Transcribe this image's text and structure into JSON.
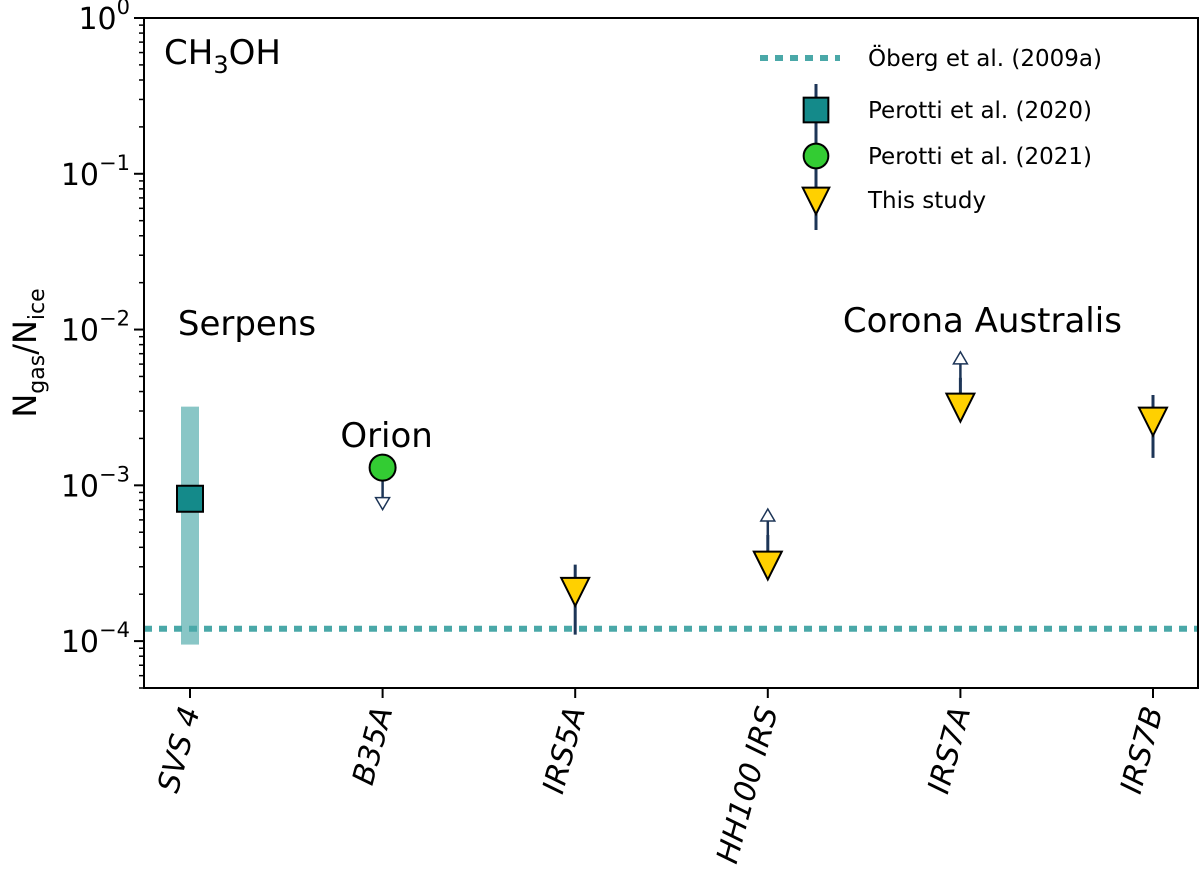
{
  "chart_data": {
    "type": "scatter",
    "panel_label": {
      "main": "CH",
      "sub": "3",
      "rest": "OH"
    },
    "ylabel": {
      "main1": "N",
      "sub1": "gas",
      "slash": "/N",
      "sub2": "ice"
    },
    "yscale": "log",
    "ylim": [
      5e-05,
      1
    ],
    "yticks": [
      {
        "value": 0.0001,
        "base": "10",
        "exp": "−4"
      },
      {
        "value": 0.001,
        "base": "10",
        "exp": "−3"
      },
      {
        "value": 0.01,
        "base": "10",
        "exp": "−2"
      },
      {
        "value": 0.1,
        "base": "10",
        "exp": "−1"
      },
      {
        "value": 1,
        "base": "10",
        "exp": "0"
      }
    ],
    "categories": [
      "SVS 4",
      "B35A",
      "IRS5A",
      "HH100 IRS",
      "IRS7A",
      "IRS7B"
    ],
    "regions": [
      {
        "label": "Serpens",
        "category": "SVS 4",
        "y": 0.011
      },
      {
        "label": "Orion",
        "category": "B35A",
        "y": 0.0021
      },
      {
        "label": "Corona Australis",
        "category": "IRS7A",
        "y": 0.0115
      }
    ],
    "reference_line": {
      "name": "Öberg et al. (2009a)",
      "value": 0.00012,
      "color": "#4aa8a8"
    },
    "series": [
      {
        "name": "Perotti et al. (2020)",
        "marker": "square",
        "color": "#148a8a",
        "points": [
          {
            "category": "SVS 4",
            "y": 0.00082,
            "band": [
              9.5e-05,
              0.0032
            ]
          }
        ]
      },
      {
        "name": "Perotti et al. (2021)",
        "marker": "circle",
        "color": "#33cc33",
        "points": [
          {
            "category": "B35A",
            "y": 0.0013,
            "upper_limit": true
          }
        ]
      },
      {
        "name": "This study",
        "marker": "triangle-down",
        "color": "#ffd000",
        "points": [
          {
            "category": "IRS5A",
            "y": 0.00021,
            "err": [
              0.00011,
              0.00031
            ]
          },
          {
            "category": "HH100 IRS",
            "y": 0.00031,
            "err": [
              0.00031,
              0.00048
            ],
            "lower_limit": true
          },
          {
            "category": "IRS7A",
            "y": 0.0032,
            "err": [
              0.0032,
              0.0049
            ],
            "lower_limit": true
          },
          {
            "category": "IRS7B",
            "y": 0.0026,
            "err": [
              0.0015,
              0.0038
            ]
          }
        ]
      }
    ],
    "legend_position": "top-right",
    "grid": false
  }
}
